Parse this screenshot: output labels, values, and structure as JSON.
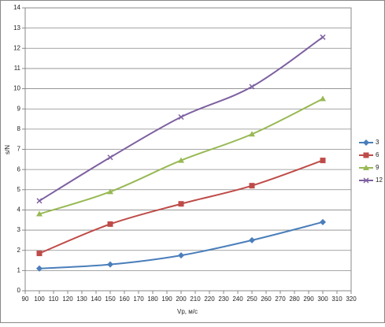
{
  "chart_data": {
    "type": "line",
    "x_label": "Vp, м/с",
    "y_label": "s/N",
    "x": [
      100,
      150,
      200,
      250,
      300
    ],
    "series": [
      {
        "name": "3",
        "color": "#4a7ebb",
        "marker": "diamond",
        "values": [
          1.1,
          1.3,
          1.75,
          2.5,
          3.4
        ]
      },
      {
        "name": "6",
        "color": "#be4b48",
        "marker": "square",
        "values": [
          1.85,
          3.3,
          4.3,
          5.2,
          6.45
        ]
      },
      {
        "name": "9",
        "color": "#98b954",
        "marker": "triangle",
        "values": [
          3.8,
          4.9,
          6.45,
          7.75,
          9.5
        ]
      },
      {
        "name": "12",
        "color": "#7d60a0",
        "marker": "x",
        "values": [
          4.45,
          6.6,
          8.6,
          10.1,
          12.55
        ]
      }
    ],
    "xlim": [
      90,
      320
    ],
    "xticks": [
      90,
      100,
      110,
      120,
      130,
      140,
      150,
      160,
      170,
      180,
      190,
      200,
      210,
      220,
      230,
      240,
      250,
      260,
      270,
      280,
      290,
      300,
      310,
      320
    ],
    "ylim": [
      0,
      14
    ],
    "yticks": [
      0,
      1,
      2,
      3,
      4,
      5,
      6,
      7,
      8,
      9,
      10,
      11,
      12,
      13,
      14
    ],
    "grid": true,
    "legend": "right"
  }
}
